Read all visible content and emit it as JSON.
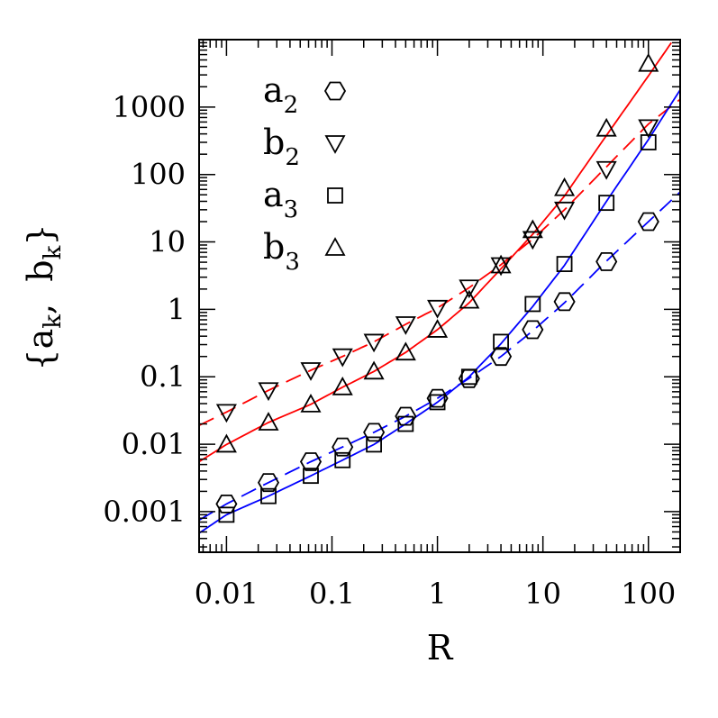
{
  "chart_data": {
    "type": "scatter",
    "title": "",
    "xlabel": "R",
    "ylabel": "{a_k, b_k}",
    "ylabel_parts": {
      "open": "{",
      "a": "a",
      "sep": ",  ",
      "b": "b",
      "sub": "k",
      "close": "}"
    },
    "xscale": "log",
    "yscale": "log",
    "xlim": [
      0.0055,
      200
    ],
    "ylim": [
      0.00025,
      10000
    ],
    "grid": false,
    "legend_position": "top-left",
    "x_ticks": [
      {
        "value": 0.01,
        "label": "0.01"
      },
      {
        "value": 0.1,
        "label": "0.1"
      },
      {
        "value": 1,
        "label": "1"
      },
      {
        "value": 10,
        "label": "10"
      },
      {
        "value": 100,
        "label": "100"
      }
    ],
    "y_ticks": [
      {
        "value": 0.001,
        "label": "0.001"
      },
      {
        "value": 0.01,
        "label": "0.01"
      },
      {
        "value": 0.1,
        "label": "0.1"
      },
      {
        "value": 1,
        "label": "1"
      },
      {
        "value": 10,
        "label": "10"
      },
      {
        "value": 100,
        "label": "100"
      },
      {
        "value": 1000,
        "label": "1000"
      }
    ],
    "series": [
      {
        "name": "a2",
        "base": "a",
        "sub": "2",
        "marker": "hexagon",
        "x": [
          0.01,
          0.025,
          0.063,
          0.126,
          0.25,
          0.5,
          1,
          2,
          4,
          8,
          16,
          40,
          100
        ],
        "y": [
          0.0013,
          0.0027,
          0.0055,
          0.0091,
          0.015,
          0.026,
          0.048,
          0.094,
          0.2,
          0.5,
          1.3,
          5.1,
          20
        ]
      },
      {
        "name": "b2",
        "base": "b",
        "sub": "2",
        "marker": "triangle-down",
        "x": [
          0.01,
          0.025,
          0.063,
          0.126,
          0.25,
          0.5,
          1,
          2,
          4,
          8,
          16,
          40,
          100
        ],
        "y": [
          0.03,
          0.063,
          0.125,
          0.2,
          0.33,
          0.6,
          1.05,
          2.1,
          4.5,
          11,
          30,
          120,
          500
        ]
      },
      {
        "name": "a3",
        "base": "a",
        "sub": "3",
        "marker": "square",
        "x": [
          0.01,
          0.025,
          0.063,
          0.126,
          0.25,
          0.5,
          1,
          2,
          4,
          8,
          16,
          40,
          100
        ],
        "y": [
          0.0009,
          0.0017,
          0.0034,
          0.0058,
          0.0099,
          0.02,
          0.042,
          0.1,
          0.33,
          1.2,
          4.7,
          38,
          300
        ]
      },
      {
        "name": "b3",
        "base": "b",
        "sub": "3",
        "marker": "triangle-up",
        "x": [
          0.01,
          0.025,
          0.063,
          0.126,
          0.25,
          0.5,
          1,
          2,
          4,
          8,
          16,
          40,
          100
        ],
        "y": [
          0.0099,
          0.021,
          0.039,
          0.07,
          0.12,
          0.23,
          0.5,
          1.35,
          4.5,
          15,
          63,
          480,
          4400
        ]
      }
    ],
    "curves": [
      {
        "for": "b3",
        "color": "#ff0000",
        "dash": "solid",
        "x": [
          0.0055,
          0.01,
          0.025,
          0.063,
          0.126,
          0.25,
          0.5,
          1,
          2,
          4,
          8,
          16,
          40,
          100,
          165
        ],
        "y": [
          0.0055,
          0.0099,
          0.021,
          0.039,
          0.07,
          0.12,
          0.23,
          0.5,
          1.25,
          4.0,
          13,
          48,
          380,
          2900,
          9000
        ]
      },
      {
        "for": "b2",
        "color": "#ff0000",
        "dash": "dashed",
        "x": [
          0.0055,
          0.01,
          0.025,
          0.063,
          0.126,
          0.25,
          0.5,
          1,
          2,
          4,
          8,
          16,
          40,
          100,
          200
        ],
        "y": [
          0.019,
          0.03,
          0.063,
          0.125,
          0.2,
          0.33,
          0.6,
          1.05,
          2.1,
          4.6,
          11,
          30,
          130,
          560,
          1300
        ]
      },
      {
        "for": "a3",
        "color": "#0000ff",
        "dash": "solid",
        "x": [
          0.0055,
          0.01,
          0.025,
          0.063,
          0.126,
          0.25,
          0.5,
          1,
          2,
          4,
          8,
          16,
          40,
          100,
          200
        ],
        "y": [
          0.00048,
          0.0009,
          0.0017,
          0.0034,
          0.0058,
          0.0099,
          0.02,
          0.042,
          0.1,
          0.31,
          1.1,
          4.5,
          40,
          330,
          1800
        ]
      },
      {
        "for": "a2",
        "color": "#0000ff",
        "dash": "dashed",
        "x": [
          0.0055,
          0.01,
          0.025,
          0.063,
          0.126,
          0.25,
          0.5,
          1,
          2,
          4,
          8,
          16,
          40,
          100,
          200
        ],
        "y": [
          0.00075,
          0.0013,
          0.0027,
          0.0055,
          0.0091,
          0.015,
          0.026,
          0.048,
          0.095,
          0.2,
          0.48,
          1.25,
          5.2,
          20,
          55
        ]
      }
    ]
  }
}
